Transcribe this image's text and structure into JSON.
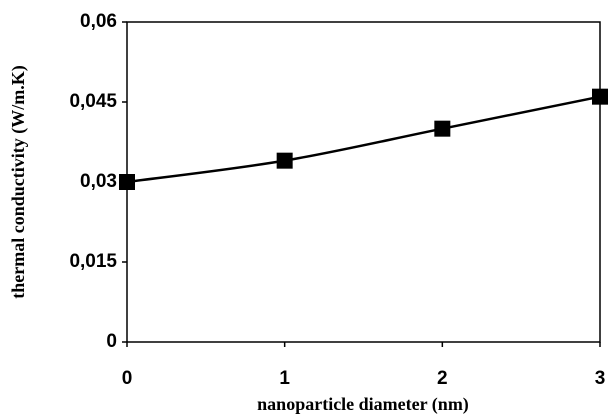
{
  "chart_data": {
    "type": "line",
    "xlabel": "nanoparticle diameter (nm)",
    "ylabel": "thermal conductivity (W/m.K)",
    "series": [
      {
        "color": "#000000",
        "x": [
          0,
          1,
          2,
          3
        ],
        "values": [
          0.03,
          0.034,
          0.04,
          0.046
        ]
      }
    ],
    "xlim": [
      0,
      3
    ],
    "xticks": [
      0,
      1,
      2,
      3
    ],
    "ylim": [
      0,
      0.06
    ],
    "yticks": [
      0,
      {
        "value": 0.015,
        "label": "0,015"
      },
      {
        "value": 0.03,
        "label": "0,03"
      },
      {
        "value": 0.045,
        "label": "0,045"
      },
      {
        "value": 0.06,
        "label": "0,06"
      }
    ],
    "grid": false
  }
}
